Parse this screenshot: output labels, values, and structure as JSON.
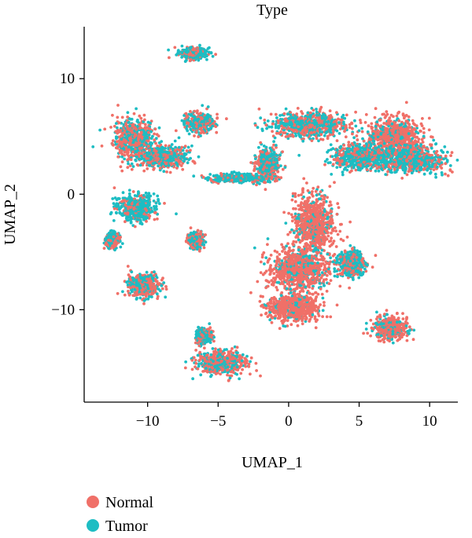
{
  "chart_data": {
    "type": "scatter",
    "title": "Type",
    "xlabel": "UMAP_1",
    "ylabel": "UMAP_2",
    "xlim": [
      -14.5,
      12
    ],
    "ylim": [
      -18,
      14.5
    ],
    "x_ticks": [
      -10,
      -5,
      0,
      5,
      10
    ],
    "y_ticks": [
      -10,
      0,
      10
    ],
    "x_tick_labels": [
      "−10",
      "−5",
      "0",
      "5",
      "10"
    ],
    "y_tick_labels": [
      "−10",
      "0",
      "10"
    ],
    "grid": false,
    "legend": {
      "placement": "bottom-left",
      "entries": [
        {
          "name": "Normal",
          "color": "#F07068"
        },
        {
          "name": "Tumor",
          "color": "#1DBDC3"
        }
      ]
    },
    "clusters": [
      {
        "cx": -6.8,
        "cy": 12.2,
        "sx": 0.9,
        "sy": 0.45,
        "normal_share": 0.3
      },
      {
        "cx": -11.0,
        "cy": 4.8,
        "sx": 1.3,
        "sy": 1.5,
        "normal_share": 0.6
      },
      {
        "cx": -8.8,
        "cy": 3.2,
        "sx": 1.4,
        "sy": 0.9,
        "normal_share": 0.5
      },
      {
        "cx": -6.3,
        "cy": 6.2,
        "sx": 0.9,
        "sy": 0.75,
        "normal_share": 0.45
      },
      {
        "cx": -3.5,
        "cy": 1.4,
        "sx": 2.0,
        "sy": 0.35,
        "normal_share": 0.3
      },
      {
        "cx": -10.8,
        "cy": -1.2,
        "sx": 1.2,
        "sy": 1.0,
        "normal_share": 0.3
      },
      {
        "cx": -12.5,
        "cy": -4.0,
        "sx": 0.45,
        "sy": 0.6,
        "normal_share": 0.4
      },
      {
        "cx": -6.6,
        "cy": -4.0,
        "sx": 0.5,
        "sy": 0.65,
        "normal_share": 0.4
      },
      {
        "cx": -10.3,
        "cy": -7.9,
        "sx": 1.0,
        "sy": 0.85,
        "normal_share": 0.5
      },
      {
        "cx": -6.0,
        "cy": -12.3,
        "sx": 0.5,
        "sy": 0.6,
        "normal_share": 0.45
      },
      {
        "cx": -4.8,
        "cy": -14.6,
        "sx": 1.6,
        "sy": 0.9,
        "normal_share": 0.55
      },
      {
        "cx": 1.5,
        "cy": 6.0,
        "sx": 2.4,
        "sy": 1.0,
        "normal_share": 0.45
      },
      {
        "cx": 7.5,
        "cy": 5.0,
        "sx": 1.8,
        "sy": 1.4,
        "normal_share": 0.8
      },
      {
        "cx": 8.5,
        "cy": 3.0,
        "sx": 2.4,
        "sy": 1.0,
        "normal_share": 0.4
      },
      {
        "cx": 5.0,
        "cy": 3.2,
        "sx": 1.6,
        "sy": 1.0,
        "normal_share": 0.35
      },
      {
        "cx": -1.5,
        "cy": 2.6,
        "sx": 0.8,
        "sy": 1.2,
        "normal_share": 0.45
      },
      {
        "cx": 1.8,
        "cy": -2.5,
        "sx": 1.3,
        "sy": 2.2,
        "normal_share": 0.85
      },
      {
        "cx": 0.8,
        "cy": -6.5,
        "sx": 2.0,
        "sy": 1.7,
        "normal_share": 0.8
      },
      {
        "cx": 0.3,
        "cy": -9.8,
        "sx": 1.6,
        "sy": 1.1,
        "normal_share": 0.85
      },
      {
        "cx": 4.5,
        "cy": -6.0,
        "sx": 0.8,
        "sy": 1.0,
        "normal_share": 0.4
      },
      {
        "cx": 7.2,
        "cy": -11.6,
        "sx": 1.1,
        "sy": 0.85,
        "normal_share": 0.75
      }
    ]
  }
}
